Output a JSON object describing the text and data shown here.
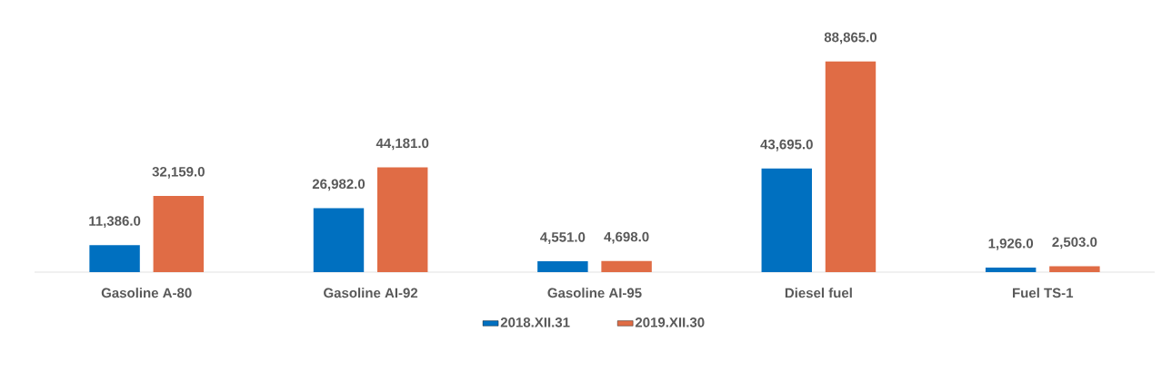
{
  "chart_data": {
    "type": "bar",
    "categories": [
      "Gasoline A-80",
      "Gasoline AI-92",
      "Gasoline AI-95",
      "Diesel fuel",
      "Fuel TS-1"
    ],
    "series": [
      {
        "name": "2018.XII.31",
        "color": "#0070c0",
        "values": [
          11386.0,
          26982.0,
          4551.0,
          43695.0,
          1926.0
        ],
        "value_labels": [
          "11,386.0",
          "26,982.0",
          "4,551.0",
          "43,695.0",
          "1,926.0"
        ]
      },
      {
        "name": "2019.XII.30",
        "color": "#e06c45",
        "values": [
          32159.0,
          44181.0,
          4698.0,
          88865.0,
          2503.0
        ],
        "value_labels": [
          "32,159.0",
          "44,181.0",
          "4,698.0",
          "88,865.0",
          "2,503.0"
        ]
      }
    ],
    "legend": "bottom"
  }
}
